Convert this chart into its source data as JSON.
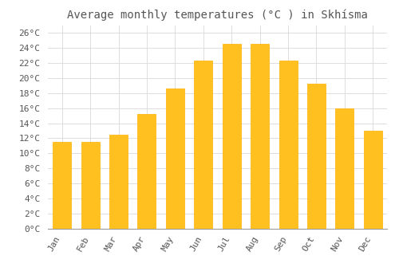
{
  "title": "Average monthly temperatures (°C ) in Skhísma",
  "months": [
    "Jan",
    "Feb",
    "Mar",
    "Apr",
    "May",
    "Jun",
    "Jul",
    "Aug",
    "Sep",
    "Oct",
    "Nov",
    "Dec"
  ],
  "values": [
    11.5,
    11.5,
    12.5,
    15.2,
    18.6,
    22.3,
    24.5,
    24.5,
    22.3,
    19.2,
    16.0,
    13.0
  ],
  "bar_color": "#FFC020",
  "bar_edge_color": "#FFB000",
  "background_color": "#FFFFFF",
  "grid_color": "#DDDDDD",
  "text_color": "#555555",
  "ylim": [
    0,
    27
  ],
  "ytick_step": 2,
  "title_fontsize": 10,
  "tick_fontsize": 8,
  "font_family": "monospace"
}
